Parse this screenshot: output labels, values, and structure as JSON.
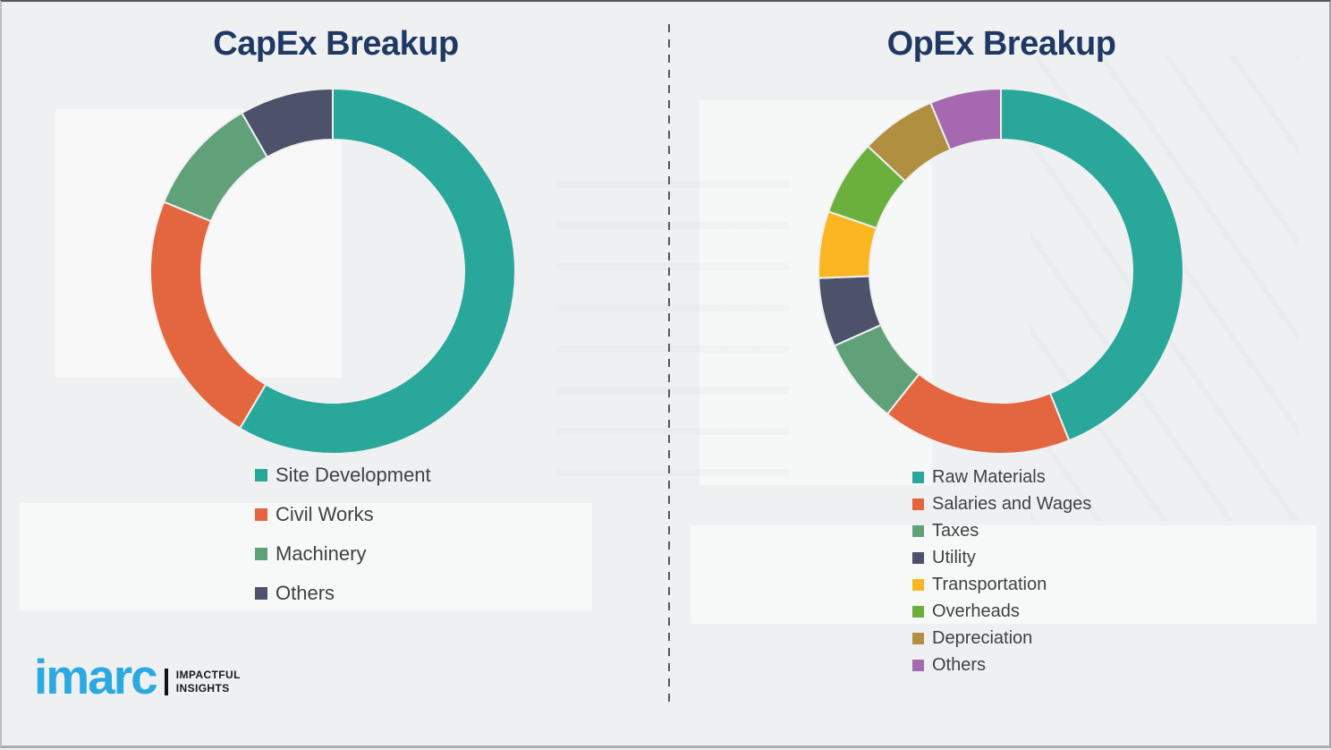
{
  "page": {
    "background_color": "#eff0f1",
    "divider_color": "#54585b",
    "title_color": "#1f3864",
    "legend_text_color": "#3f4245"
  },
  "chart_data": [
    {
      "type": "pie",
      "variant": "donut",
      "title": "CapEx Breakup",
      "labels": [
        "Site Development",
        "Civil Works",
        "Machinery",
        "Others"
      ],
      "values": [
        58.5,
        22.7,
        10.5,
        8.3
      ],
      "colors": [
        "#2AA79B",
        "#E4663F",
        "#61A17A",
        "#4B5269"
      ],
      "start_angle_deg": 0,
      "direction": "clockwise",
      "legend_position": "bottom-left"
    },
    {
      "type": "pie",
      "variant": "donut",
      "title": "OpEx Breakup",
      "labels": [
        "Raw Materials",
        "Salaries and Wages",
        "Taxes",
        "Utility",
        "Transportation",
        "Overheads",
        "Depreciation",
        "Others"
      ],
      "values": [
        43.9,
        16.8,
        7.6,
        6.1,
        5.9,
        6.7,
        6.7,
        6.3
      ],
      "colors": [
        "#2AA79B",
        "#E4663F",
        "#61A17A",
        "#4B5269",
        "#FBB622",
        "#6BB03C",
        "#B08F40",
        "#A668AE"
      ],
      "start_angle_deg": 0,
      "direction": "clockwise",
      "legend_position": "bottom-left"
    }
  ],
  "logo": {
    "brand": "imarc",
    "brand_color": "#2ba9e0",
    "tagline_line1": "IMPACTFUL",
    "tagline_line2": "INSIGHTS"
  }
}
